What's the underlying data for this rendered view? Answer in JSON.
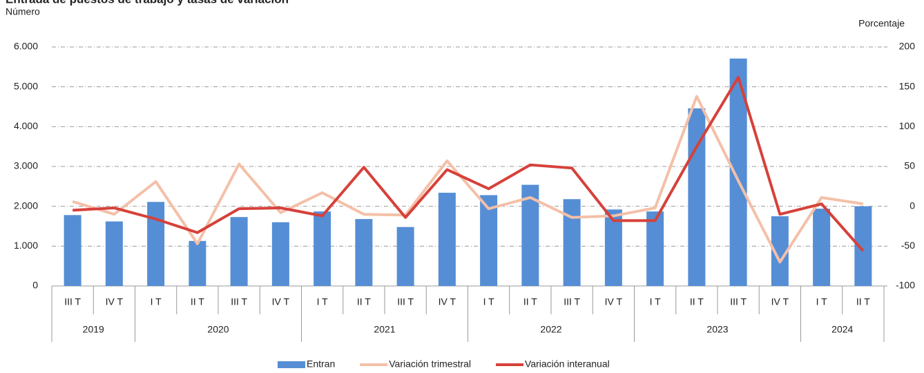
{
  "chart_data": {
    "type": "bar_line",
    "title": "Entrada de puestos de trabajo y tasas de variación",
    "ylabel": "Número",
    "y2label": "Porcentaje",
    "categories": [
      "III T",
      "IV T",
      "I T",
      "II T",
      "III T",
      "IV T",
      "I T",
      "II T",
      "III T",
      "IV T",
      "I T",
      "II T",
      "III T",
      "IV T",
      "I T",
      "II T",
      "III T",
      "IV T",
      "I T",
      "II T"
    ],
    "groups": [
      {
        "label": "2019",
        "count": 2
      },
      {
        "label": "2020",
        "count": 4
      },
      {
        "label": "2021",
        "count": 4
      },
      {
        "label": "2022",
        "count": 4
      },
      {
        "label": "2023",
        "count": 4
      },
      {
        "label": "2024",
        "count": 2
      }
    ],
    "series": [
      {
        "name": "Entran",
        "type": "bar",
        "color": "#558ed5",
        "values": [
          1780,
          1620,
          2110,
          1130,
          1730,
          1600,
          1870,
          1680,
          1480,
          2340,
          2280,
          2540,
          2180,
          1920,
          1870,
          4460,
          5710,
          1750,
          1940,
          2000
        ]
      },
      {
        "name": "Variación trimestral",
        "type": "line",
        "axis": "y2",
        "color": "#f4c0a8",
        "values": [
          6,
          -10,
          31,
          -47,
          53,
          -8,
          17,
          -10,
          -11,
          57,
          -3,
          11,
          -14,
          -12,
          -2,
          138,
          32,
          -70,
          11,
          3
        ]
      },
      {
        "name": "Variación interanual",
        "type": "line",
        "axis": "y2",
        "color": "#d6413a",
        "values": [
          -5,
          -2,
          -16,
          -33,
          -3,
          -2,
          -12,
          49,
          -14,
          46,
          22,
          52,
          48,
          -18,
          -18,
          75,
          162,
          -10,
          3,
          -56
        ]
      }
    ],
    "ylim": [
      0,
      6000
    ],
    "yticks": [
      0,
      {
        "value": 1000,
        "label": "1.000"
      },
      {
        "value": 2000,
        "label": "2.000"
      },
      {
        "value": 3000,
        "label": "3.000"
      },
      {
        "value": 4000,
        "label": "4.000"
      },
      {
        "value": 5000,
        "label": "5.000"
      },
      {
        "value": 6000,
        "label": "6.000"
      }
    ],
    "y2lim": [
      -100,
      200
    ],
    "y2ticks": [
      -100,
      -50,
      0,
      50,
      100,
      150,
      200
    ],
    "grid": true,
    "legend": "bottom"
  }
}
